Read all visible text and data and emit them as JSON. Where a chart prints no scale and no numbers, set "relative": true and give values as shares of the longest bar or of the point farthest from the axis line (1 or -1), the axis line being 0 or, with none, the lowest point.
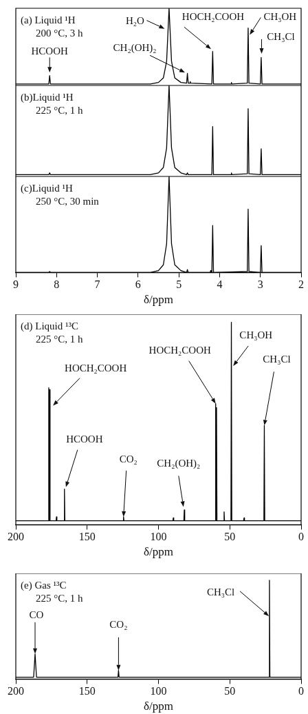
{
  "chart_data": [
    {
      "type": "line",
      "title": "(a) Liquid ¹H",
      "subtitle": "200 °C, 3 h",
      "relative": true,
      "xlim": [
        9,
        2
      ],
      "tick_labels": false,
      "series": [
        {
          "color": "#000000",
          "x": [
            9,
            8.19,
            8.17,
            8.15,
            5.7,
            5.5,
            5.38,
            5.3,
            5.24,
            5.18,
            5.1,
            4.95,
            4.81,
            4.79,
            4.77,
            4.73,
            4.72,
            4.71,
            4.19,
            4.17,
            4.15,
            3.72,
            3.71,
            3.7,
            3.32,
            3.3,
            3.28,
            3,
            2.98,
            2.96,
            2
          ],
          "values": [
            0,
            0,
            0.11,
            0,
            0,
            0.02,
            0.08,
            0.3,
            1,
            0.3,
            0.08,
            0.02,
            0.01,
            0.14,
            0.01,
            0.01,
            0.03,
            0.01,
            0,
            0.43,
            0,
            0,
            0.02,
            0,
            0.01,
            0.74,
            0.01,
            0,
            0.35,
            0,
            0
          ]
        }
      ],
      "annotations": [
        {
          "text": "HCOOH",
          "x": 8.17,
          "y": 0.15
        },
        {
          "text": "H₂O",
          "x": 5.35,
          "y": 0.73
        },
        {
          "text": "CH₂(OH)₂",
          "x": 4.85,
          "y": 0.15
        },
        {
          "text": "HOCH₂COOH",
          "x": 4.21,
          "y": 0.46
        },
        {
          "text": "CH₃OH",
          "x": 3.26,
          "y": 0.65
        },
        {
          "text": "CH₃Cl",
          "x": 2.97,
          "y": 0.4
        }
      ]
    },
    {
      "type": "line",
      "title": "(b)Liquid ¹H",
      "subtitle": "225 °C, 1 h",
      "relative": true,
      "xlim": [
        9,
        2
      ],
      "tick_labels": false,
      "series": [
        {
          "color": "#000000",
          "x": [
            9,
            8.19,
            8.17,
            8.15,
            5.7,
            5.5,
            5.38,
            5.3,
            5.24,
            5.18,
            5.1,
            4.95,
            4.81,
            4.79,
            4.77,
            4.19,
            4.17,
            4.15,
            3.72,
            3.71,
            3.7,
            3.32,
            3.3,
            3.28,
            3,
            2.98,
            2.96,
            2
          ],
          "values": [
            0,
            0,
            0.02,
            0,
            0,
            0.02,
            0.08,
            0.3,
            1,
            0.3,
            0.08,
            0.02,
            0,
            0.02,
            0,
            0,
            0.54,
            0,
            0,
            0.02,
            0,
            0.01,
            0.74,
            0.01,
            0,
            0.29,
            0,
            0
          ]
        }
      ]
    },
    {
      "type": "line",
      "title": "(c)Liquid ¹H",
      "subtitle": "250 °C, 30 min",
      "xlabel": "δ/ppm",
      "relative": true,
      "xlim": [
        9,
        2
      ],
      "xticks": [
        9,
        8,
        7,
        6,
        5,
        4,
        3,
        2
      ],
      "series": [
        {
          "color": "#000000",
          "x": [
            9,
            8.19,
            8.17,
            8.15,
            5.7,
            5.5,
            5.38,
            5.3,
            5.24,
            5.18,
            5.1,
            4.95,
            4.81,
            4.79,
            4.77,
            4.23,
            4.22,
            4.21,
            4.19,
            4.17,
            4.15,
            3.32,
            3.3,
            3.28,
            3,
            2.98,
            2.96,
            2
          ],
          "values": [
            0,
            0,
            0.01,
            0,
            0,
            0.02,
            0.08,
            0.3,
            1,
            0.3,
            0.08,
            0.02,
            0,
            0.03,
            0,
            0,
            0.02,
            0,
            0,
            0.49,
            0,
            0.01,
            0.66,
            0.01,
            0,
            0.28,
            0,
            0
          ]
        }
      ]
    },
    {
      "type": "line",
      "title": "(d) Liquid ¹³C",
      "subtitle": "225 °C, 1 h",
      "xlabel": "δ/ppm",
      "relative": true,
      "xlim": [
        200,
        0
      ],
      "xticks": [
        200,
        150,
        100,
        50,
        0
      ],
      "series": [
        {
          "color": "#000000",
          "x": [
            200,
            177.2,
            176.9,
            176.6,
            176.3,
            176,
            171.8,
            171.5,
            171.2,
            166.2,
            165.9,
            165.6,
            124.8,
            124.5,
            124.2,
            89.9,
            89.6,
            89.3,
            82.2,
            81.9,
            81.6,
            60.2,
            59.9,
            59.6,
            59.3,
            59,
            54.3,
            54,
            53.7,
            49.2,
            48.9,
            48.6,
            40.3,
            40,
            39.7,
            26.1,
            25.8,
            25.5,
            0
          ],
          "values": [
            0,
            0,
            0.67,
            0,
            0.66,
            0,
            0,
            0.02,
            0,
            0,
            0.16,
            0,
            0,
            0.02,
            0,
            0,
            0.015,
            0,
            0,
            0.055,
            0,
            0,
            0.59,
            0,
            0.57,
            0,
            0,
            0.045,
            0,
            0,
            1,
            0,
            0,
            0.015,
            0,
            0,
            0.48,
            0,
            0
          ]
        }
      ],
      "annotations": [
        {
          "text": "HOCH₂COOH",
          "x": 173.9,
          "y": 0.58
        },
        {
          "text": "HCOOH",
          "x": 164.9,
          "y": 0.17
        },
        {
          "text": "CO₂",
          "x": 124.5,
          "y": 0.02
        },
        {
          "text": "CH₂(OH)₂",
          "x": 82.5,
          "y": 0.07
        },
        {
          "text": "HOCH₂COOH",
          "x": 59.9,
          "y": 0.59
        },
        {
          "text": "CH₃OH",
          "x": 47.6,
          "y": 0.78
        },
        {
          "text": "CH₃Cl",
          "x": 25.8,
          "y": 0.48
        }
      ]
    },
    {
      "type": "line",
      "title": "(e) Gas ¹³C",
      "subtitle": "225 °C, 1 h",
      "xlabel": "δ/ppm",
      "relative": true,
      "xlim": [
        200,
        0
      ],
      "xticks": [
        200,
        150,
        100,
        50,
        0
      ],
      "series": [
        {
          "color": "#000000",
          "x": [
            200,
            187.5,
            186.5,
            185.5,
            128.4,
            128,
            127.6,
            22.5,
            22.2,
            21.9,
            0
          ],
          "values": [
            0,
            0,
            0.24,
            0,
            0,
            0.07,
            0,
            0,
            1,
            0,
            0
          ]
        }
      ],
      "annotations": [
        {
          "text": "CO",
          "x": 186.5,
          "y": 0.24
        },
        {
          "text": "CO₂",
          "x": 128,
          "y": 0.07
        },
        {
          "text": "CH₃Cl",
          "x": 22.6,
          "y": 0.63
        }
      ]
    }
  ]
}
